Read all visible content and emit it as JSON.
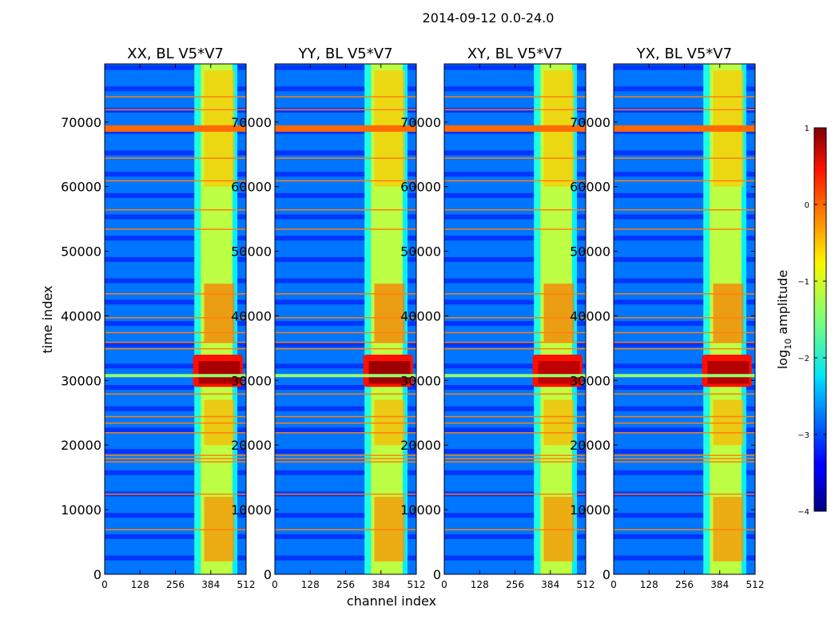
{
  "suptitle": "2014-09-12 0.0-24.0",
  "chart_data": {
    "type": "heatmap",
    "xlabel": "channel index",
    "ylabel": "time index",
    "xlim": [
      0,
      512
    ],
    "ylim": [
      0,
      79000
    ],
    "xticks": [
      "0",
      "128",
      "256",
      "384",
      "512"
    ],
    "yticks": [
      "0",
      "10000",
      "20000",
      "30000",
      "40000",
      "50000",
      "60000",
      "70000"
    ],
    "colorbar": {
      "label": "log10 amplitude",
      "label_base": "log",
      "label_sub": "10",
      "label_rest": " amplitude",
      "range": [
        -4,
        1
      ],
      "ticks": [
        "1",
        "0",
        "−1",
        "−2",
        "−3",
        "−4"
      ],
      "colormap": "jet"
    },
    "panels": [
      {
        "title": "XX, BL V5*V7",
        "burst_value": 0.8
      },
      {
        "title": "YY, BL V5*V7",
        "burst_value": 0.85
      },
      {
        "title": "XY, BL V5*V7",
        "burst_value": 0.7
      },
      {
        "title": "YX, BL V5*V7",
        "burst_value": 0.75
      }
    ],
    "features": {
      "bright_band_channels": [
        325,
        480
      ],
      "band_level": -1.2,
      "background_level": -2.8,
      "burst_time_range": [
        29000,
        34000
      ],
      "burst_channels": [
        320,
        500
      ],
      "flag_band_times": [
        68500,
        69500
      ],
      "flag_lines_times": [
        74000,
        72000,
        64500,
        61000,
        56500,
        53500,
        43500,
        39800,
        37500,
        36000,
        35000,
        28000,
        24500,
        23500,
        22000,
        18500,
        18000,
        17500,
        12500,
        7000
      ]
    }
  }
}
